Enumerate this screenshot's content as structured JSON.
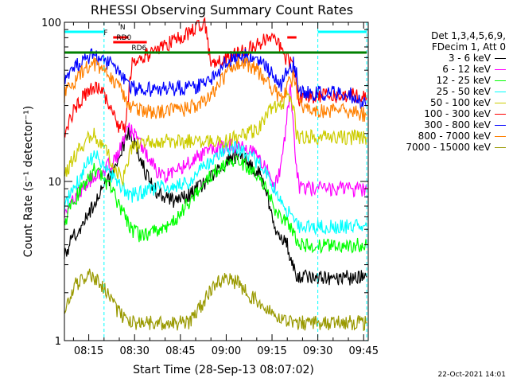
{
  "chart_data": {
    "type": "line",
    "title": "RHESSI Observing Summary Count Rates",
    "xlabel": "Start Time (28-Sep-13 08:07:02)",
    "ylabel": "Count Rate (s⁻¹ detector⁻¹)",
    "yscale": "log",
    "ylim": [
      1,
      100
    ],
    "xlim_minutes": [
      487.03,
      586.5
    ],
    "grid": false,
    "legend_position": "right",
    "x_ticks": [
      {
        "t": 495,
        "label": "08:15"
      },
      {
        "t": 510,
        "label": "08:30"
      },
      {
        "t": 525,
        "label": "08:45"
      },
      {
        "t": 540,
        "label": "09:00"
      },
      {
        "t": 555,
        "label": "09:15"
      },
      {
        "t": 570,
        "label": "09:30"
      },
      {
        "t": 585,
        "label": "09:45"
      }
    ],
    "y_ticks": [
      {
        "v": 1,
        "label": "1"
      },
      {
        "v": 10,
        "label": "10"
      },
      {
        "v": 100,
        "label": "100"
      }
    ],
    "legend": {
      "header": [
        "Det 1,3,4,5,6,9,",
        "FDecim 1, Att 0"
      ]
    },
    "series": [
      {
        "name": "3 - 6 keV",
        "color": "#000000",
        "x": [
          487,
          489,
          492,
          495,
          498,
          502,
          505,
          508,
          511,
          514,
          517,
          520,
          523,
          527,
          531,
          535,
          539,
          543,
          547,
          551,
          554,
          556,
          558,
          560,
          562,
          563,
          564,
          568,
          572,
          576,
          580,
          583,
          586
        ],
        "y": [
          3.4,
          4.2,
          5.1,
          6.2,
          8.0,
          10.5,
          15.0,
          20.0,
          16.0,
          11.0,
          8.8,
          8.0,
          7.5,
          8.0,
          9.2,
          10.5,
          13.0,
          14.5,
          13.5,
          11.0,
          7.5,
          5.0,
          4.5,
          4.0,
          2.8,
          2.6,
          2.5,
          2.5,
          2.5,
          2.5,
          2.5,
          2.5,
          2.5
        ]
      },
      {
        "name": "6 - 12 keV",
        "color": "#ff00ff",
        "x": [
          487,
          492,
          496,
          500,
          504,
          508,
          511,
          514,
          517,
          520,
          523,
          527,
          531,
          535,
          539,
          543,
          547,
          551,
          554,
          556,
          558,
          561,
          563,
          564,
          568,
          572,
          576,
          580,
          584,
          586
        ],
        "y": [
          6.5,
          8.5,
          10.5,
          12.0,
          14.0,
          22.0,
          19.0,
          15.0,
          12.0,
          10.8,
          11.5,
          13.0,
          14.5,
          15.5,
          16.5,
          17.0,
          16.0,
          14.0,
          11.0,
          9.5,
          12.0,
          40.0,
          12.0,
          9.0,
          9.0,
          9.0,
          9.0,
          9.0,
          9.0,
          9.0
        ]
      },
      {
        "name": "12 - 25 keV",
        "color": "#00ff00",
        "x": [
          487,
          490,
          494,
          497,
          500,
          503,
          506,
          509,
          512,
          516,
          520,
          524,
          528,
          532,
          536,
          540,
          543,
          547,
          551,
          554,
          556,
          558,
          560,
          562,
          563,
          564,
          570,
          576,
          582,
          586
        ],
        "y": [
          5.5,
          7.5,
          10.0,
          12.0,
          10.5,
          8.5,
          6.5,
          5.0,
          4.6,
          4.8,
          5.2,
          6.0,
          7.5,
          9.5,
          11.5,
          13.0,
          13.5,
          12.5,
          10.5,
          8.5,
          6.5,
          5.8,
          5.5,
          5.0,
          4.3,
          4.0,
          4.0,
          4.0,
          4.0,
          4.0
        ]
      },
      {
        "name": "25 - 50 keV",
        "color": "#00ffff",
        "x": [
          487,
          490,
          494,
          497,
          500,
          503,
          506,
          509,
          512,
          516,
          520,
          524,
          528,
          532,
          536,
          540,
          543,
          547,
          551,
          554,
          556,
          558,
          560,
          562,
          563,
          564,
          570,
          576,
          582,
          586
        ],
        "y": [
          7.0,
          9.0,
          12.5,
          15.0,
          13.0,
          10.5,
          9.0,
          8.2,
          8.5,
          9.0,
          9.3,
          9.5,
          10.0,
          12.0,
          14.5,
          16.0,
          16.5,
          15.0,
          13.0,
          11.0,
          9.0,
          7.5,
          6.5,
          6.0,
          5.5,
          5.2,
          5.2,
          5.2,
          5.2,
          5.2
        ]
      },
      {
        "name": "50 - 100 keV",
        "color": "#cccc00",
        "x": [
          487,
          490,
          494,
          497,
          500,
          503,
          506,
          509,
          512,
          516,
          520,
          524,
          528,
          532,
          536,
          540,
          543,
          547,
          551,
          554,
          556,
          558,
          560,
          562,
          563,
          564,
          570,
          576,
          582,
          586
        ],
        "y": [
          11.0,
          14.0,
          18.0,
          20.0,
          16.0,
          13.0,
          10.0,
          16.0,
          18.0,
          18.0,
          18.0,
          18.0,
          18.0,
          18.0,
          18.0,
          18.0,
          19.0,
          20.0,
          22.0,
          28.0,
          30.0,
          30.0,
          35.0,
          30.0,
          20.0,
          19.0,
          19.0,
          19.0,
          19.0,
          19.0
        ]
      },
      {
        "name": "100 - 300 keV",
        "color": "#ff0000",
        "x": [
          487,
          490,
          494,
          497,
          499,
          501,
          503,
          505,
          507,
          509,
          511,
          514,
          518,
          522,
          526,
          530,
          533,
          535,
          538,
          541,
          543,
          545,
          548,
          551,
          554,
          556,
          558,
          560,
          562,
          563,
          564,
          568,
          572,
          576,
          580,
          583,
          586
        ],
        "y": [
          20.0,
          28.0,
          36.0,
          40.0,
          38.0,
          32.0,
          26.0,
          22.0,
          22.0,
          55.0,
          58.0,
          62.0,
          68.0,
          75.0,
          82.0,
          92.0,
          98.0,
          55.0,
          57.0,
          60.0,
          63.0,
          66.0,
          70.0,
          75.0,
          82.0,
          76.0,
          68.0,
          58.0,
          55.0,
          40.0,
          33.0,
          34.0,
          35.0,
          35.0,
          35.0,
          35.0,
          34.0
        ]
      },
      {
        "name": "300 - 800 keV",
        "color": "#0000ff",
        "x": [
          487,
          490,
          493,
          496,
          499,
          502,
          505,
          508,
          511,
          514,
          518,
          522,
          526,
          530,
          534,
          538,
          541,
          544,
          547,
          550,
          553,
          556,
          558,
          560,
          562,
          563,
          564,
          568,
          572,
          576,
          580,
          584,
          586
        ],
        "y": [
          45.0,
          52.0,
          58.0,
          62.0,
          60.0,
          55.0,
          48.0,
          40.0,
          38.0,
          38.0,
          38.0,
          38.5,
          39.0,
          40.0,
          42.0,
          52.0,
          58.0,
          62.0,
          62.0,
          58.0,
          52.0,
          45.0,
          41.0,
          50.0,
          55.0,
          48.0,
          38.0,
          36.0,
          36.0,
          36.0,
          36.0,
          32.0,
          30.0
        ]
      },
      {
        "name": "800 - 7000 keV",
        "color": "#ff8000",
        "x": [
          487,
          490,
          493,
          496,
          499,
          502,
          505,
          508,
          511,
          514,
          518,
          522,
          526,
          530,
          534,
          538,
          541,
          544,
          547,
          550,
          553,
          556,
          558,
          560,
          562,
          563,
          564,
          568,
          572,
          576,
          580,
          584,
          586
        ],
        "y": [
          35.0,
          42.0,
          50.0,
          55.0,
          53.0,
          46.0,
          38.0,
          31.0,
          28.0,
          27.5,
          27.5,
          28.0,
          28.5,
          30.0,
          33.0,
          42.0,
          50.0,
          55.0,
          55.0,
          50.0,
          44.0,
          37.0,
          33.0,
          40.0,
          45.0,
          38.0,
          30.0,
          28.0,
          28.0,
          28.0,
          28.0,
          27.0,
          26.0
        ]
      },
      {
        "name": "7000 - 15000 keV",
        "color": "#999900",
        "x": [
          487,
          490,
          495,
          500,
          504,
          508,
          512,
          516,
          520,
          524,
          528,
          532,
          536,
          540,
          544,
          548,
          552,
          556,
          559,
          562,
          564,
          568,
          572,
          576,
          580,
          584,
          586
        ],
        "y": [
          1.6,
          2.2,
          2.6,
          2.2,
          1.6,
          1.3,
          1.3,
          1.3,
          1.3,
          1.3,
          1.3,
          1.7,
          2.3,
          2.5,
          2.3,
          1.9,
          1.7,
          1.4,
          1.3,
          1.3,
          1.3,
          1.3,
          1.3,
          1.3,
          1.3,
          1.3,
          1.3
        ]
      }
    ],
    "annotations": {
      "N": {
        "label": "N",
        "color": "#00ffff",
        "segments": [
          [
            487,
            500
          ],
          [
            570,
            586
          ]
        ]
      },
      "F": {
        "label": "F",
        "color": "#ff0000",
        "segments": [
          [
            503,
            508
          ],
          [
            560,
            563
          ]
        ]
      },
      "RD0": {
        "label": "RD0",
        "color": "#ff0000",
        "segments": [
          [
            503,
            514
          ]
        ]
      },
      "RD6": {
        "label": "RD6",
        "color": "#008000",
        "segments": [
          [
            487,
            586
          ]
        ]
      }
    },
    "timestamp": "22-Oct-2021 14:01"
  }
}
